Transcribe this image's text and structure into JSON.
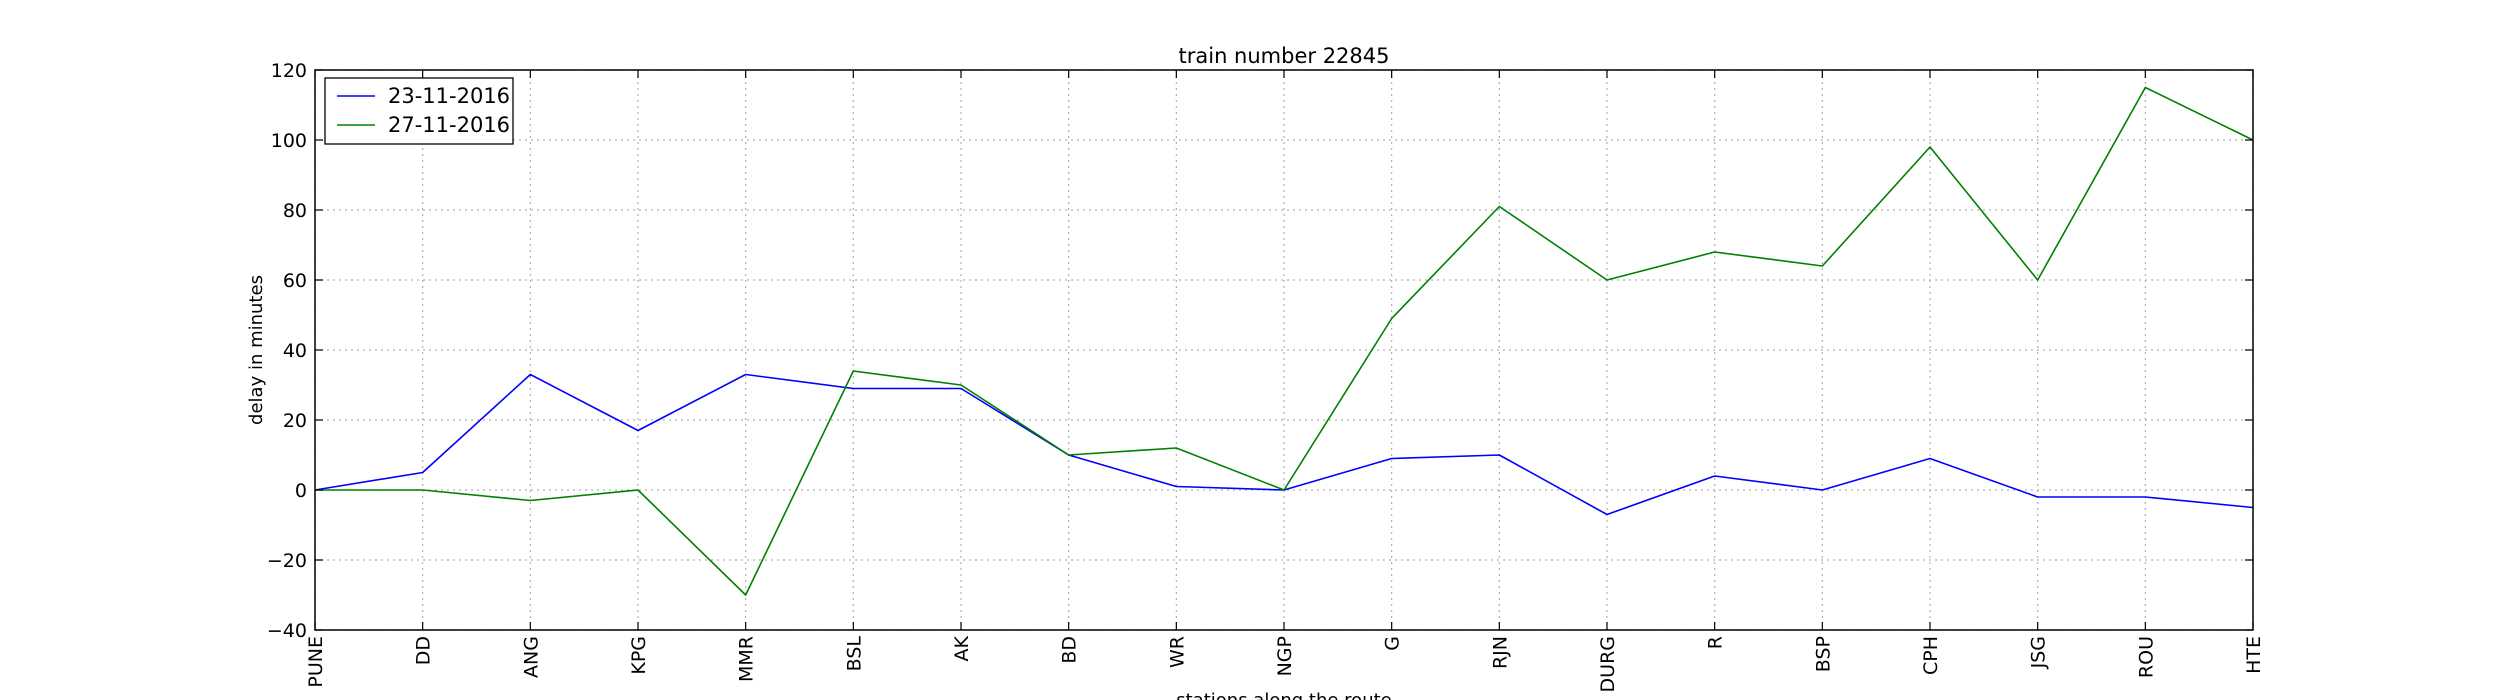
{
  "chart_data": {
    "type": "line",
    "title": "train number 22845",
    "xlabel": "stations along the route",
    "ylabel": "delay in minutes",
    "categories": [
      "PUNE",
      "DD",
      "ANG",
      "KPG",
      "MMR",
      "BSL",
      "AK",
      "BD",
      "WR",
      "NGP",
      "G",
      "RJN",
      "DURG",
      "R",
      "BSP",
      "CPH",
      "JSG",
      "ROU",
      "HTE"
    ],
    "ylim": [
      -40,
      120
    ],
    "yticks": [
      -40,
      -20,
      0,
      20,
      40,
      60,
      80,
      100,
      120
    ],
    "ytick_labels": [
      "−40",
      "−20",
      "0",
      "20",
      "40",
      "60",
      "80",
      "100",
      "120"
    ],
    "grid": true,
    "legend_position": "top-left",
    "series": [
      {
        "name": "23-11-2016",
        "color": "#0000ff",
        "values": [
          0,
          5,
          33,
          17,
          33,
          29,
          29,
          10,
          1,
          0,
          9,
          10,
          -7,
          4,
          0,
          9,
          -2,
          -2,
          -5
        ]
      },
      {
        "name": "27-11-2016",
        "color": "#008000",
        "values": [
          0,
          0,
          -3,
          0,
          -30,
          34,
          30,
          10,
          12,
          0,
          49,
          81,
          60,
          68,
          64,
          98,
          60,
          115,
          100
        ]
      }
    ]
  }
}
